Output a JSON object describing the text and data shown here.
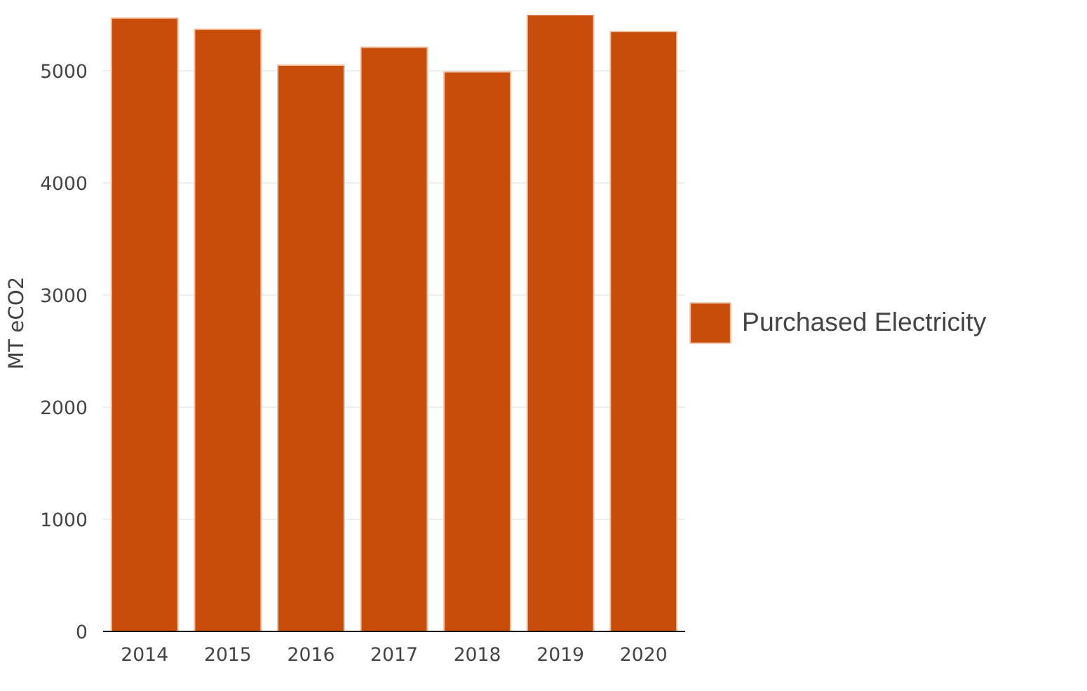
{
  "chart_data": {
    "type": "bar",
    "ylabel": "MT eCO2",
    "categories": [
      "2014",
      "2015",
      "2016",
      "2017",
      "2018",
      "2019",
      "2020"
    ],
    "series": [
      {
        "name": "Purchased Electricity",
        "color": "#c94d0a",
        "values": [
          5470,
          5370,
          5050,
          5210,
          4990,
          5500,
          5350
        ]
      }
    ],
    "ylim": [
      0,
      5500
    ],
    "yticks": [
      0,
      1000,
      2000,
      3000,
      4000,
      5000
    ],
    "grid": "y",
    "legend": "right"
  }
}
